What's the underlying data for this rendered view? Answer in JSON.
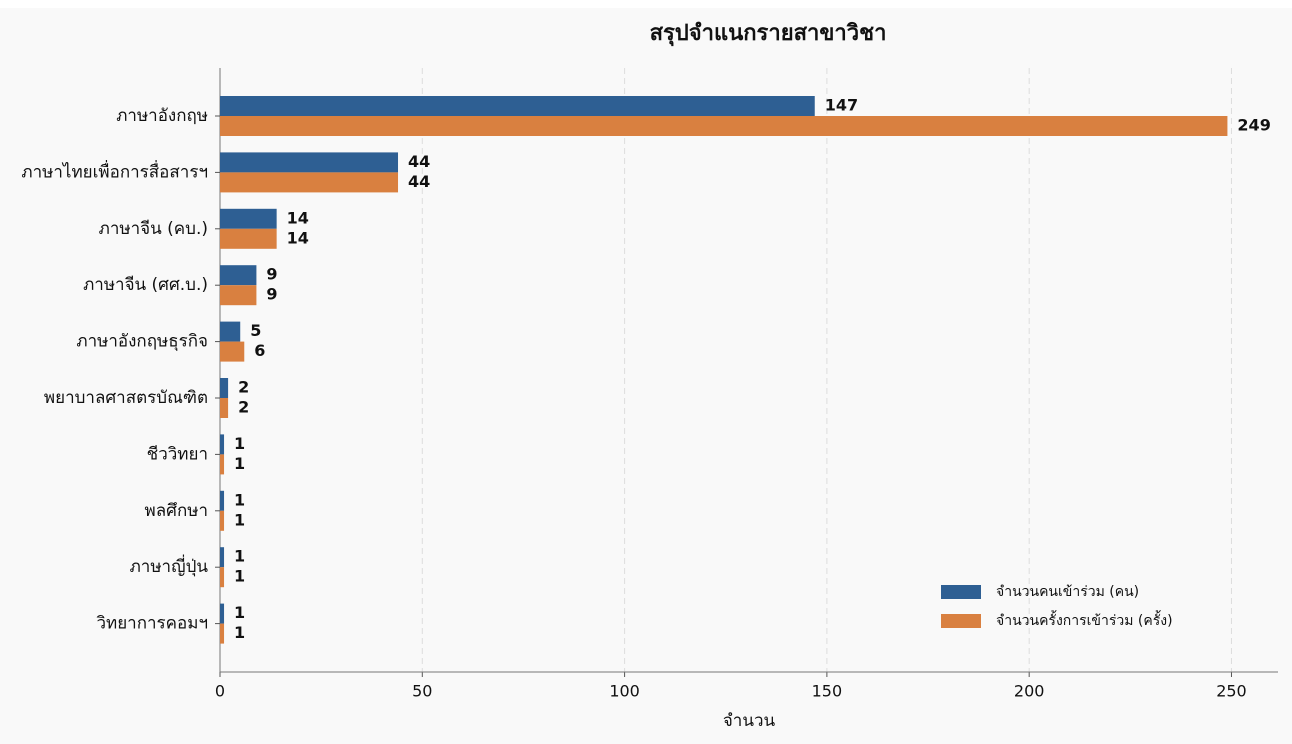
{
  "chart_data": {
    "type": "barh",
    "title": "สรุปจำแนกรายสาขาวิชา",
    "x_label": "จำนวน",
    "categories": [
      "ภาษาอังกฤษ",
      "ภาษาไทยเพื่อการสื่อสารฯ",
      "ภาษาจีน (คบ.)",
      "ภาษาจีน (ศศ.บ.)",
      "ภาษาอังกฤษธุรกิจ",
      "พยาบาลศาสตรบัณฑิต",
      "ชีววิทยา",
      "พลศึกษา",
      "ภาษาญี่ปุ่น",
      "วิทยาการคอมฯ"
    ],
    "series": [
      {
        "name": "จำนวนคนเข้าร่วม (คน)",
        "color": "#2e5f93",
        "values": [
          147,
          44,
          14,
          9,
          5,
          2,
          1,
          1,
          1,
          1
        ]
      },
      {
        "name": "จำนวนครั้งการเข้าร่วม (ครั้ง)",
        "color": "#d98040",
        "values": [
          249,
          44,
          14,
          9,
          6,
          2,
          1,
          1,
          1,
          1
        ]
      }
    ],
    "xlim": [
      0,
      261.5
    ],
    "xticks": [
      0,
      50,
      100,
      150,
      200,
      250
    ],
    "grid": true,
    "legend": "lower right"
  }
}
